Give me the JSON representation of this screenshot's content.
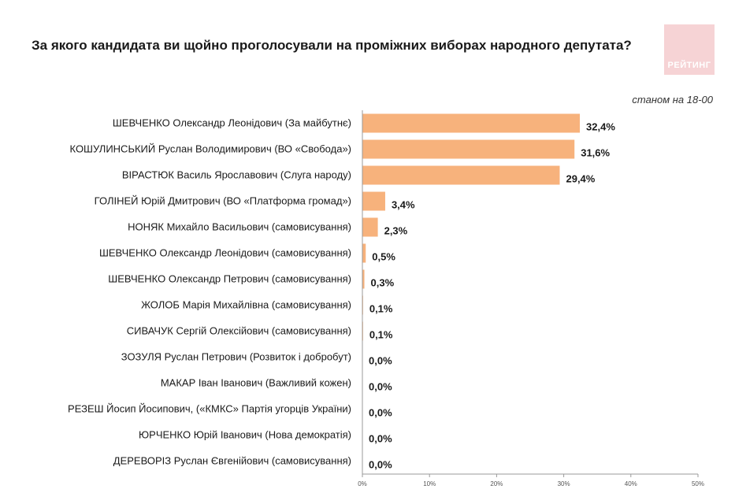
{
  "title": "За якого кандидата ви щойно проголосували на проміжних виборах народного депутата?",
  "logo_text": "РЕЙТИНГ",
  "subtitle": "станом на 18-00",
  "colors": {
    "bar": "#f7b27c",
    "axis": "#9a9a9a",
    "logo": "#f6d3d5"
  },
  "chart_data": {
    "type": "bar",
    "orientation": "horizontal",
    "title": "За якого кандидата ви щойно проголосували на проміжних виборах народного депутата?",
    "categories": [
      "ШЕВЧЕНКО Олександр Леонідович (За майбутнє)",
      "КОШУЛИНСЬКИЙ Руслан Володимирович (ВО «Свобода»)",
      "ВІРАСТЮК Василь Ярославович (Слуга народу)",
      "ГОЛІНЕЙ Юрій Дмитрович (ВО «Платформа громад»)",
      "НОНЯК Михайло Васильович (самовисування)",
      "ШЕВЧЕНКО Олександр Леонідович (самовисування)",
      "ШЕВЧЕНКО Олександр Петрович (самовисування)",
      "ЖОЛОБ Марія Михайлівна (самовисування)",
      "СИВАЧУК Сергій Олексійович (самовисування)",
      "ЗОЗУЛЯ Руслан Петрович (Розвиток і добробут)",
      "МАКАР Іван Іванович (Важливий кожен)",
      "РЕЗЕШ Йосип Йосипович, («КМКС» Партія угорців України)",
      "ЮРЧЕНКО Юрій Іванович (Нова демократія)",
      "ДЕРЕВОРІЗ Руслан Євгенійович (самовисування)"
    ],
    "values": [
      32.4,
      31.6,
      29.4,
      3.4,
      2.3,
      0.5,
      0.3,
      0.1,
      0.1,
      0.0,
      0.0,
      0.0,
      0.0,
      0.0
    ],
    "value_labels": [
      "32,4%",
      "31,6%",
      "29,4%",
      "3,4%",
      "2,3%",
      "0,5%",
      "0,3%",
      "0,1%",
      "0,1%",
      "0,0%",
      "0,0%",
      "0,0%",
      "0,0%",
      "0,0%"
    ],
    "xlim": [
      0,
      50
    ],
    "ticks": [
      0,
      10,
      20,
      30,
      40,
      50
    ],
    "tick_labels": [
      "0%",
      "10%",
      "20%",
      "30%",
      "40%",
      "50%"
    ],
    "grid": false
  }
}
